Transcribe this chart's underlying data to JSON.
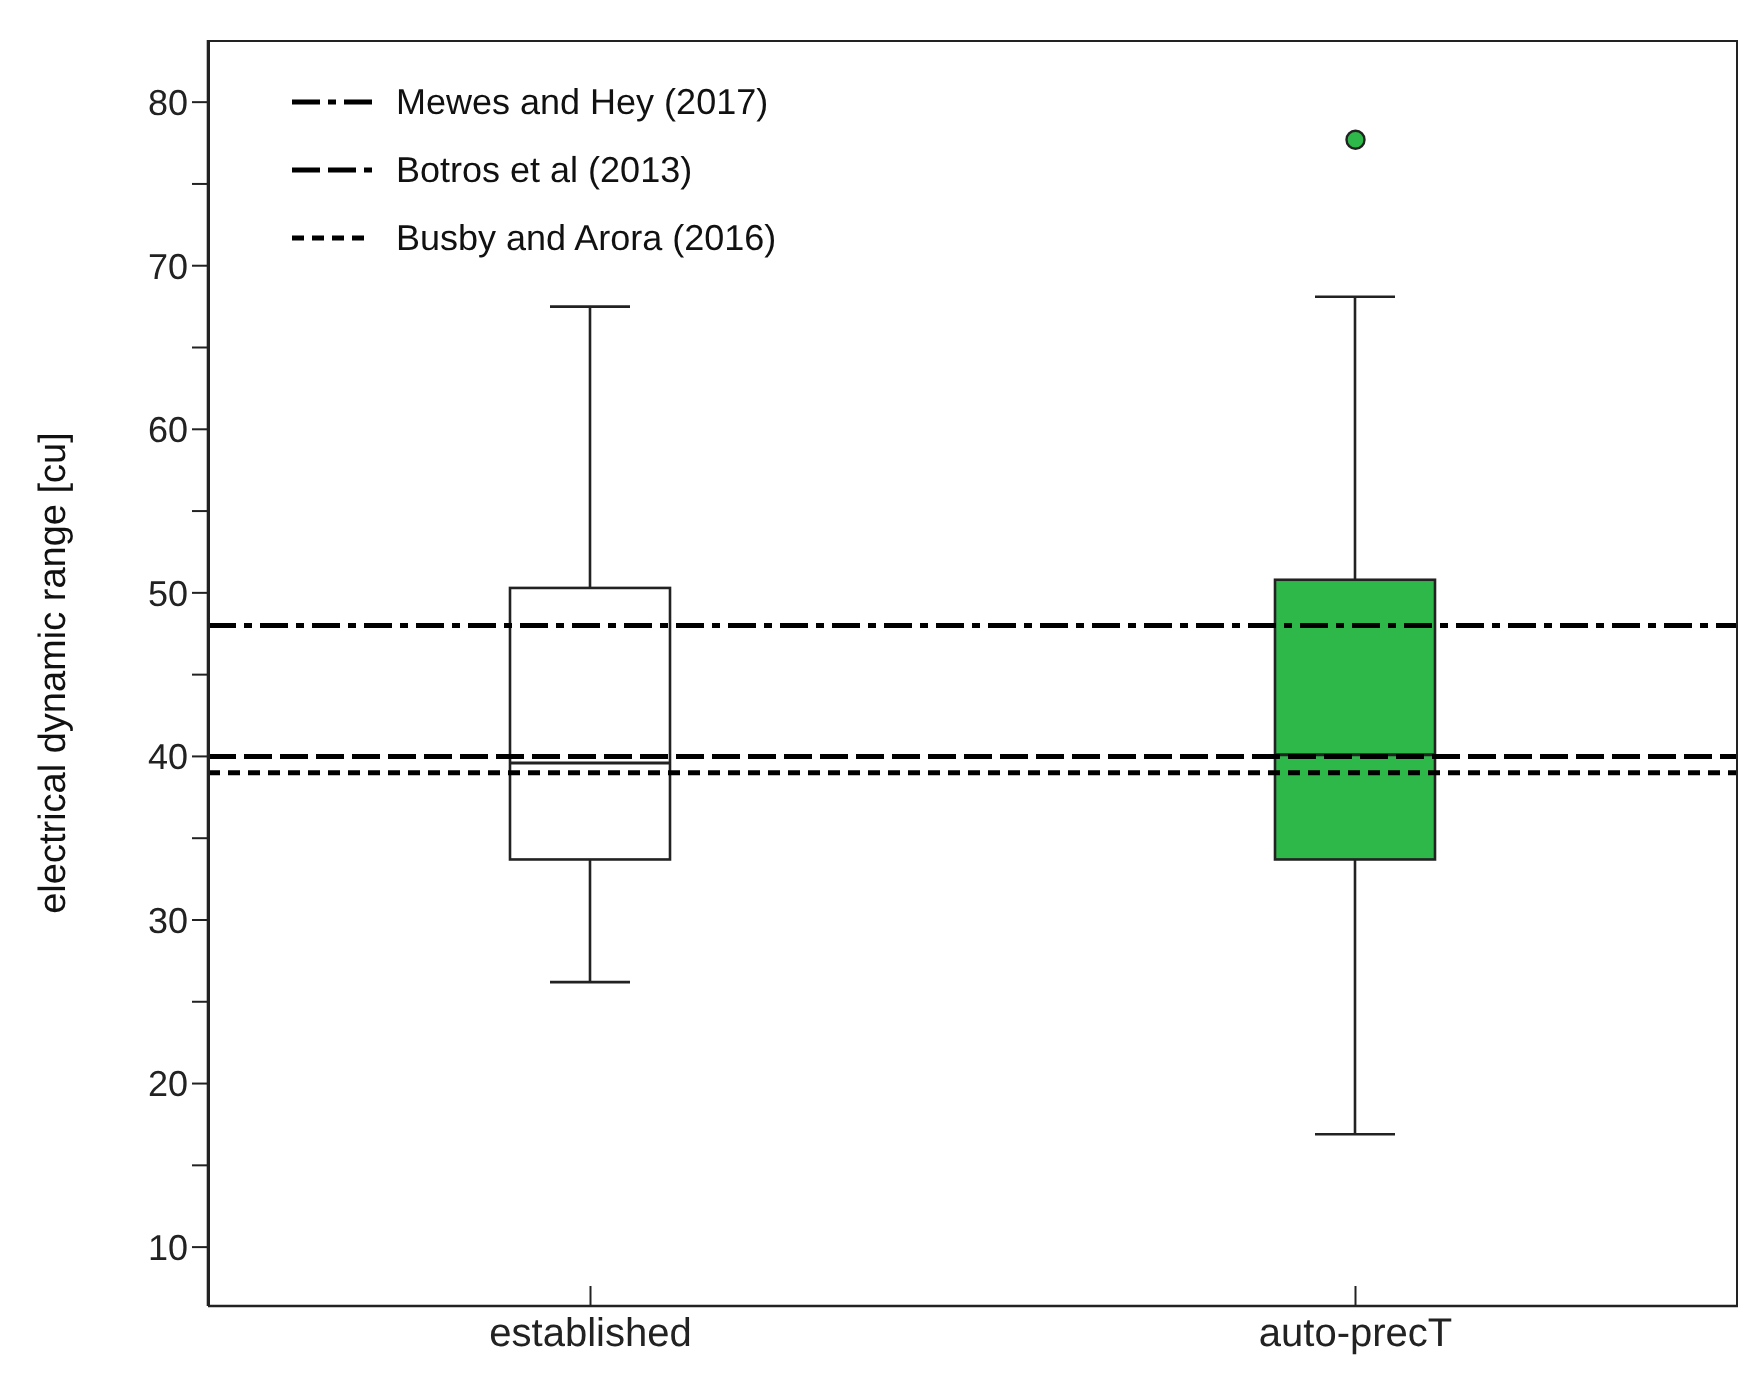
{
  "chart_data": {
    "type": "box",
    "ylabel": "electrical dynamic range [cu]",
    "categories": [
      "established",
      "auto-precT"
    ],
    "colors": [
      "#ffffff",
      "#2eb84a"
    ],
    "boxes": [
      {
        "low": 26.2,
        "q1": 33.7,
        "median": 39.6,
        "q3": 50.3,
        "high": 67.5
      },
      {
        "low": 16.9,
        "q1": 33.7,
        "median": 40.1,
        "q3": 50.8,
        "high": 68.1,
        "outliers": [
          77.7
        ]
      }
    ],
    "ylim": [
      6.4,
      83.8
    ],
    "yticks": [
      10,
      {
        "value": 15,
        "label": null
      },
      20,
      {
        "value": 25,
        "label": null
      },
      30,
      {
        "value": 35,
        "label": null
      },
      40,
      {
        "value": 45,
        "label": null
      },
      50,
      {
        "value": 55,
        "label": null
      },
      60,
      {
        "value": 65,
        "label": null
      },
      70,
      {
        "value": 75,
        "label": null
      },
      80
    ],
    "ref_lines": [
      {
        "axis": "y",
        "value": 48,
        "label": "Mewes and Hey (2017)",
        "color": "#000000",
        "line_style": "dashdot"
      },
      {
        "axis": "y",
        "value": 40,
        "label": "Botros et al (2013)",
        "color": "#000000",
        "line_style": "dashed"
      },
      {
        "axis": "y",
        "value": 39,
        "label": "Busby and Arora (2016)",
        "color": "#000000",
        "line_style": "dotted"
      }
    ],
    "legend": "top left"
  }
}
